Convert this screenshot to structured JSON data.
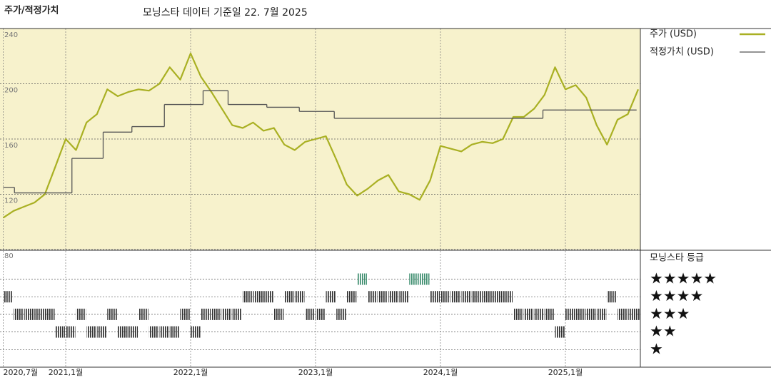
{
  "chart_data": [
    {
      "type": "line",
      "title": "주가/적정가치",
      "subtitle": "모닝스타 데이터 기준일 22. 7월 2025",
      "xlim": [
        2020.5,
        2025.6
      ],
      "xticks": [
        {
          "value": 2020.5,
          "label": "2020,7월"
        },
        {
          "value": 2021,
          "label": "2021,1월"
        },
        {
          "value": 2022,
          "label": "2022,1월"
        },
        {
          "value": 2023,
          "label": "2023,1월"
        },
        {
          "value": 2024,
          "label": "2024,1월"
        },
        {
          "value": 2025,
          "label": "2025,1월"
        }
      ],
      "ylim": [
        80,
        240
      ],
      "yticks": [
        80,
        120,
        160,
        200,
        240
      ],
      "grid": true,
      "background": "#f7f2cc",
      "series": [
        {
          "name": "주가 (USD)",
          "color": "#a9b023",
          "x": [
            2020.5,
            2020.583,
            2020.667,
            2020.75,
            2020.833,
            2020.917,
            2021,
            2021.083,
            2021.167,
            2021.25,
            2021.333,
            2021.417,
            2021.5,
            2021.583,
            2021.667,
            2021.75,
            2021.833,
            2021.917,
            2022,
            2022.083,
            2022.167,
            2022.25,
            2022.333,
            2022.417,
            2022.5,
            2022.583,
            2022.667,
            2022.75,
            2022.833,
            2022.917,
            2023,
            2023.083,
            2023.167,
            2023.25,
            2023.333,
            2023.417,
            2023.5,
            2023.583,
            2023.667,
            2023.75,
            2023.833,
            2023.917,
            2024,
            2024.083,
            2024.167,
            2024.25,
            2024.333,
            2024.417,
            2024.5,
            2024.583,
            2024.667,
            2024.75,
            2024.833,
            2024.917,
            2025,
            2025.083,
            2025.167,
            2025.25,
            2025.333,
            2025.417,
            2025.5,
            2025.583
          ],
          "values": [
            103,
            108,
            111,
            114,
            120,
            140,
            160,
            152,
            172,
            178,
            196,
            191,
            194,
            196,
            195,
            200,
            212,
            203,
            222,
            205,
            194,
            182,
            170,
            168,
            172,
            166,
            168,
            156,
            152,
            158,
            160,
            162,
            145,
            127,
            119,
            124,
            130,
            134,
            122,
            120,
            116,
            130,
            155,
            153,
            151,
            156,
            158,
            157,
            160,
            176,
            176,
            182,
            192,
            212,
            196,
            199,
            190,
            170,
            156,
            174,
            178,
            196
          ]
        },
        {
          "name": "적정가치 (USD)",
          "color": "#555555",
          "step": true,
          "x": [
            2020.5,
            2020.59,
            2021.05,
            2021.3,
            2021.53,
            2021.79,
            2022.1,
            2022.3,
            2022.61,
            2022.87,
            2023.15,
            2024.82,
            2025.57
          ],
          "values": [
            125,
            121,
            146,
            165,
            169,
            185,
            195,
            185,
            183,
            180,
            175,
            181,
            181
          ]
        }
      ]
    },
    {
      "type": "rating",
      "title": "모닝스타 등급",
      "xlim": [
        2020.5,
        2025.6
      ],
      "ylim": [
        0,
        6.6
      ],
      "yticks": [
        {
          "value": 5,
          "label": "★★★★★"
        },
        {
          "value": 4,
          "label": "★★★★"
        },
        {
          "value": 3,
          "label": "★★★"
        },
        {
          "value": 2,
          "label": "★★"
        },
        {
          "value": 1,
          "label": "★"
        }
      ],
      "colors": [
        "#333333",
        "#333333",
        "#333333",
        "#333333",
        "#3f8f70"
      ],
      "x": [
        2020.5,
        2020.583,
        2020.667,
        2020.75,
        2020.833,
        2020.917,
        2021,
        2021.083,
        2021.167,
        2021.25,
        2021.333,
        2021.417,
        2021.5,
        2021.583,
        2021.667,
        2021.75,
        2021.833,
        2021.917,
        2022,
        2022.083,
        2022.167,
        2022.25,
        2022.333,
        2022.417,
        2022.5,
        2022.583,
        2022.667,
        2022.75,
        2022.833,
        2022.917,
        2023,
        2023.083,
        2023.167,
        2023.25,
        2023.333,
        2023.417,
        2023.5,
        2023.583,
        2023.667,
        2023.75,
        2023.833,
        2023.917,
        2024,
        2024.083,
        2024.167,
        2024.25,
        2024.333,
        2024.417,
        2024.5,
        2024.583,
        2024.667,
        2024.75,
        2024.833,
        2024.917,
        2025,
        2025.083,
        2025.167,
        2025.25,
        2025.333,
        2025.417,
        2025.5,
        2025.583
      ],
      "values": [
        4,
        3,
        3,
        3,
        3,
        2,
        2,
        3,
        2,
        2,
        3,
        2,
        2,
        3,
        2,
        2,
        2,
        3,
        2,
        3,
        3,
        3,
        3,
        4,
        4,
        4,
        3,
        4,
        4,
        3,
        3,
        4,
        3,
        4,
        5,
        4,
        4,
        4,
        4,
        5,
        5,
        4,
        4,
        4,
        4,
        4,
        4,
        4,
        4,
        3,
        3,
        3,
        3,
        2,
        3,
        3,
        3,
        3,
        4,
        3,
        3,
        3
      ]
    }
  ]
}
